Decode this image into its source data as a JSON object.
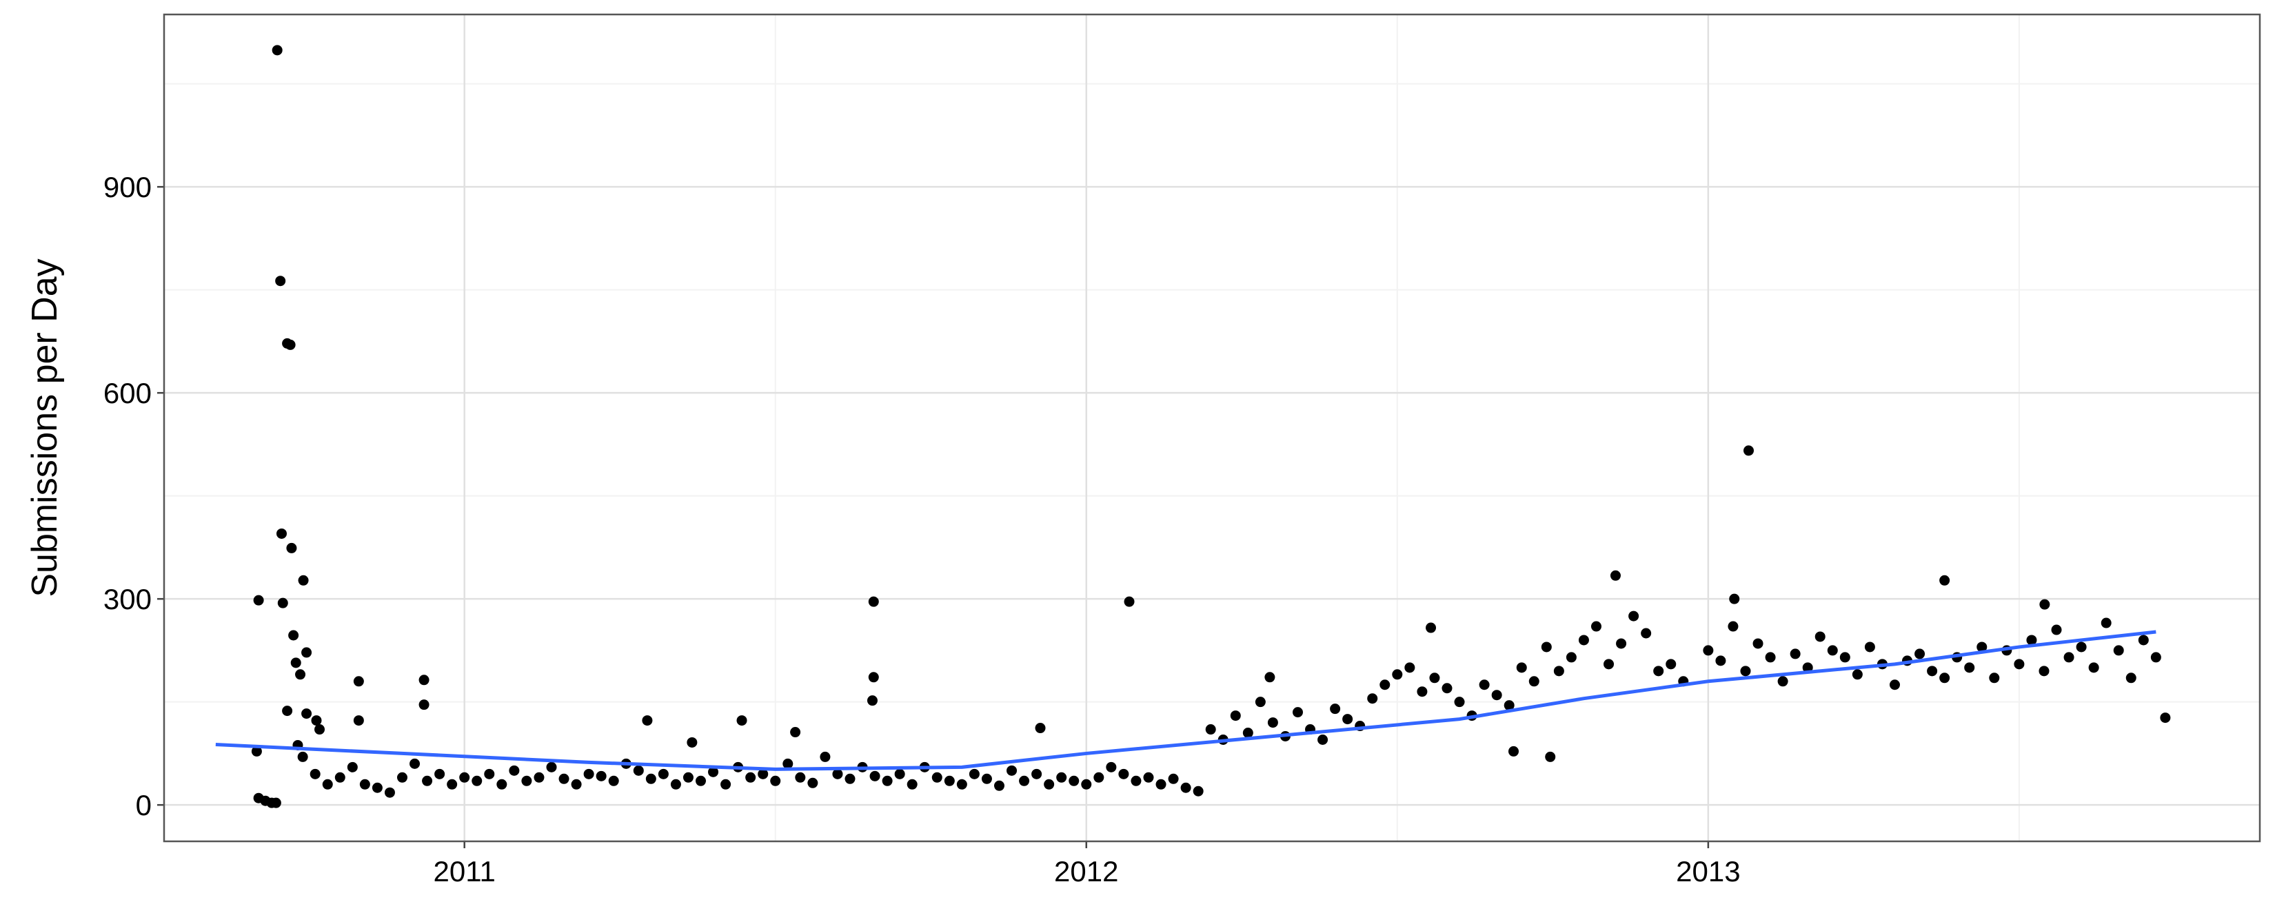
{
  "chart_data": {
    "type": "scatter",
    "ylabel": "Submissions per Day",
    "xlim": [
      2010.517,
      2013.887
    ],
    "xticks": [
      2011,
      2012,
      2013
    ],
    "ylim": [
      -53,
      1151
    ],
    "yticks": [
      0,
      300,
      600,
      900
    ],
    "grid": true,
    "series": [
      {
        "type": "scatter",
        "color": "#000000",
        "x": [
          2010.666,
          2010.669,
          2010.669,
          2010.68,
          2010.69,
          2010.697,
          2010.699,
          2010.704,
          2010.706,
          2010.708,
          2010.715,
          2010.715,
          2010.72,
          2010.722,
          2010.725,
          2010.729,
          2010.732,
          2010.736,
          2010.741,
          2010.746,
          2010.746,
          2010.762,
          2010.767,
          2010.83,
          2010.83,
          2010.935,
          2010.935,
          2011.294,
          2011.366,
          2011.446,
          2011.532,
          2011.656,
          2011.658,
          2011.658,
          2011.926,
          2012.069,
          2012.295,
          2012.554,
          2012.687,
          2012.746,
          2012.851,
          2013.042,
          2013.065,
          2013.38,
          2013.541,
          2013.735,
          2010.74,
          2010.76,
          2010.78,
          2010.8,
          2010.82,
          2010.84,
          2010.86,
          2010.88,
          2010.9,
          2010.92,
          2010.94,
          2010.96,
          2010.98,
          2011.0,
          2011.02,
          2011.04,
          2011.06,
          2011.08,
          2011.1,
          2011.12,
          2011.14,
          2011.16,
          2011.18,
          2011.2,
          2011.22,
          2011.24,
          2011.26,
          2011.28,
          2011.3,
          2011.32,
          2011.34,
          2011.36,
          2011.38,
          2011.4,
          2011.42,
          2011.44,
          2011.46,
          2011.48,
          2011.5,
          2011.52,
          2011.54,
          2011.56,
          2011.58,
          2011.6,
          2011.62,
          2011.64,
          2011.66,
          2011.68,
          2011.7,
          2011.72,
          2011.74,
          2011.76,
          2011.78,
          2011.8,
          2011.82,
          2011.84,
          2011.86,
          2011.88,
          2011.9,
          2011.92,
          2011.94,
          2011.96,
          2011.98,
          2012.0,
          2012.02,
          2012.04,
          2012.06,
          2012.08,
          2012.1,
          2012.12,
          2012.14,
          2012.16,
          2012.18,
          2012.2,
          2012.22,
          2012.24,
          2012.26,
          2012.28,
          2012.3,
          2012.32,
          2012.34,
          2012.36,
          2012.38,
          2012.4,
          2012.42,
          2012.44,
          2012.46,
          2012.48,
          2012.5,
          2012.52,
          2012.54,
          2012.56,
          2012.58,
          2012.6,
          2012.62,
          2012.64,
          2012.66,
          2012.68,
          2012.7,
          2012.72,
          2012.74,
          2012.76,
          2012.78,
          2012.8,
          2012.82,
          2012.84,
          2012.86,
          2012.88,
          2012.9,
          2012.92,
          2012.94,
          2012.96,
          2013.0,
          2013.02,
          2013.04,
          2013.06,
          2013.08,
          2013.1,
          2013.12,
          2013.14,
          2013.16,
          2013.18,
          2013.2,
          2013.22,
          2013.24,
          2013.26,
          2013.28,
          2013.3,
          2013.32,
          2013.34,
          2013.36,
          2013.38,
          2013.4,
          2013.42,
          2013.44,
          2013.46,
          2013.48,
          2013.5,
          2013.52,
          2013.54,
          2013.56,
          2013.58,
          2013.6,
          2013.62,
          2013.64,
          2013.66,
          2013.68,
          2013.7,
          2013.72
        ],
        "values": [
          78,
          298,
          10,
          6,
          3,
          3,
          1099,
          763,
          395,
          294,
          672,
          137,
          670,
          374,
          247,
          207,
          87,
          190,
          327,
          222,
          133,
          123,
          110,
          180,
          123,
          182,
          146,
          123,
          91,
          123,
          106,
          152,
          296,
          186,
          112,
          296,
          186,
          258,
          78,
          70,
          334,
          300,
          516,
          327,
          292,
          127,
          70,
          45,
          30,
          40,
          55,
          30,
          25,
          18,
          40,
          60,
          35,
          45,
          30,
          40,
          35,
          45,
          30,
          50,
          35,
          40,
          55,
          38,
          30,
          45,
          42,
          35,
          60,
          50,
          38,
          45,
          30,
          40,
          35,
          48,
          30,
          55,
          40,
          45,
          35,
          60,
          40,
          32,
          70,
          45,
          38,
          55,
          42,
          35,
          45,
          30,
          55,
          40,
          35,
          30,
          45,
          38,
          28,
          50,
          35,
          45,
          30,
          40,
          35,
          30,
          40,
          55,
          45,
          35,
          40,
          30,
          38,
          25,
          20,
          110,
          95,
          130,
          105,
          150,
          120,
          100,
          135,
          110,
          95,
          140,
          125,
          115,
          155,
          175,
          190,
          200,
          165,
          185,
          170,
          150,
          130,
          175,
          160,
          145,
          200,
          180,
          230,
          195,
          215,
          240,
          260,
          205,
          235,
          275,
          250,
          195,
          205,
          180,
          225,
          210,
          260,
          195,
          235,
          215,
          180,
          220,
          200,
          245,
          225,
          215,
          190,
          230,
          205,
          175,
          210,
          220,
          195,
          185,
          215,
          200,
          230,
          185,
          225,
          205,
          240,
          195,
          255,
          215,
          230,
          200,
          265,
          225,
          185,
          240,
          215
        ]
      },
      {
        "type": "line",
        "color": "#3366ff",
        "x": [
          2010.6,
          2010.9,
          2011.2,
          2011.5,
          2011.8,
          2012.0,
          2012.3,
          2012.6,
          2012.8,
          2013.0,
          2013.3,
          2013.5,
          2013.72
        ],
        "values": [
          88,
          75,
          62,
          52,
          55,
          75,
          100,
          125,
          155,
          180,
          205,
          230,
          252
        ]
      }
    ]
  }
}
